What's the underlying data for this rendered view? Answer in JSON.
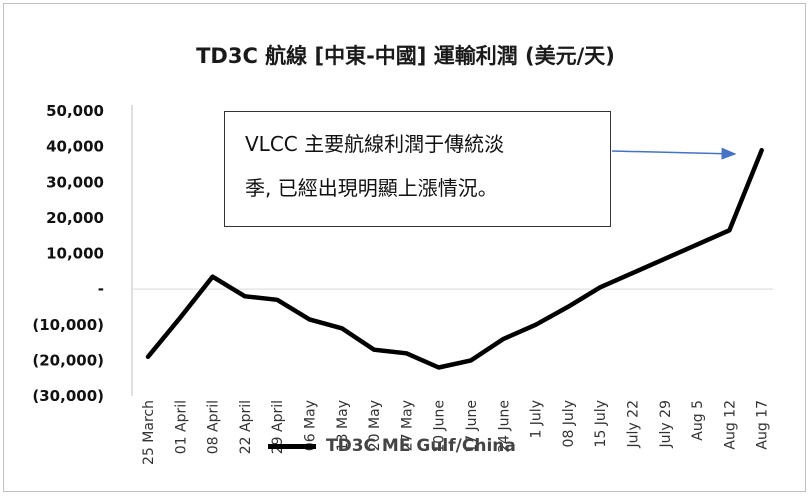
{
  "chart_data": {
    "type": "line",
    "title": "TD3C 航線 [中東-中國] 運輸利潤 (美元/天)",
    "categories": [
      "25 March",
      "01 April",
      "08 April",
      "22 April",
      "29 April",
      "06 May",
      "13 May",
      "20 May",
      "27 May",
      "10 June",
      "17 June",
      "24 June",
      "1 July",
      "08 July",
      "15 July",
      "July 22",
      "July 29",
      "Aug 5",
      "Aug 12",
      "Aug 17"
    ],
    "series": [
      {
        "name": "TD3C ME Gulf/China",
        "color": "#000000",
        "values": [
          -19000,
          -8000,
          3500,
          -2000,
          -3000,
          -8500,
          -11000,
          -17000,
          -18000,
          -22000,
          -20000,
          -14000,
          -10000,
          -5000,
          500,
          4500,
          8500,
          12500,
          16500,
          39000
        ]
      }
    ],
    "yticks": [
      {
        "value": 50000,
        "label": "50,000"
      },
      {
        "value": 40000,
        "label": "40,000"
      },
      {
        "value": 30000,
        "label": "30,000"
      },
      {
        "value": 20000,
        "label": "20,000"
      },
      {
        "value": 10000,
        "label": "10,000"
      },
      {
        "value": 0,
        "label": "-"
      },
      {
        "value": -10000,
        "label": "(10,000)"
      },
      {
        "value": -20000,
        "label": "(20,000)"
      },
      {
        "value": -30000,
        "label": "(30,000)"
      }
    ],
    "ylim": [
      -30000,
      50000
    ],
    "grid": false,
    "legend_position": "bottom",
    "annotation": {
      "line1": "VLCC 主要航線利潤于傳統淡",
      "line2": "季, 已經出現明顯上漲情況。",
      "arrow_color": "#4472c4"
    }
  }
}
